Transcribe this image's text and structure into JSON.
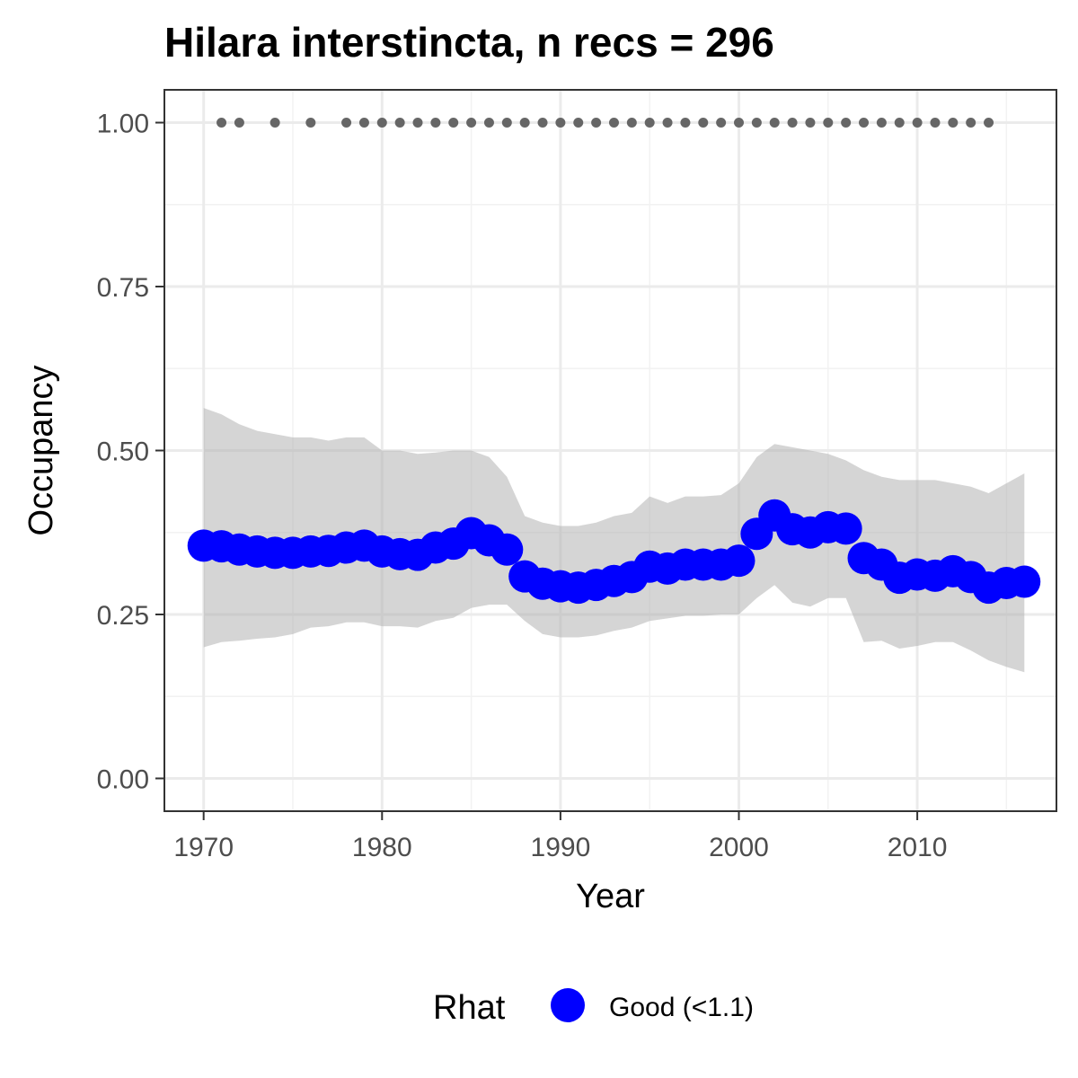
{
  "chart_data": {
    "type": "line",
    "title": "Hilara interstincta, n recs = 296",
    "xlabel": "Year",
    "ylabel": "Occupancy",
    "xlim": [
      1967.8,
      2017.8
    ],
    "ylim": [
      -0.05,
      1.05
    ],
    "x_ticks": [
      1970,
      1980,
      1990,
      2000,
      2010
    ],
    "x_tick_labels": [
      "1970",
      "1980",
      "1990",
      "2000",
      "2010"
    ],
    "y_ticks": [
      0,
      0.25,
      0.5,
      0.75,
      1
    ],
    "y_tick_labels": [
      "0.00",
      "0.25",
      "0.50",
      "0.75",
      "1.00"
    ],
    "grid": true,
    "legend": {
      "title": "Rhat",
      "position": "bottom",
      "entries": [
        {
          "label": "Good (<1.1)",
          "color": "#0000ff"
        }
      ]
    },
    "series": [
      {
        "name": "Good (<1.1)",
        "color": "#0000ff",
        "x": [
          1970,
          1971,
          1972,
          1973,
          1974,
          1975,
          1976,
          1977,
          1978,
          1979,
          1980,
          1981,
          1982,
          1983,
          1984,
          1985,
          1986,
          1987,
          1988,
          1989,
          1990,
          1991,
          1992,
          1993,
          1994,
          1995,
          1996,
          1997,
          1998,
          1999,
          2000,
          2001,
          2002,
          2003,
          2004,
          2005,
          2006,
          2007,
          2008,
          2009,
          2010,
          2011,
          2012,
          2013,
          2014,
          2015,
          2016
        ],
        "y": [
          0.355,
          0.354,
          0.349,
          0.346,
          0.344,
          0.344,
          0.346,
          0.347,
          0.352,
          0.355,
          0.346,
          0.342,
          0.341,
          0.352,
          0.358,
          0.374,
          0.363,
          0.349,
          0.308,
          0.297,
          0.293,
          0.291,
          0.295,
          0.301,
          0.307,
          0.323,
          0.32,
          0.326,
          0.326,
          0.326,
          0.332,
          0.373,
          0.401,
          0.38,
          0.375,
          0.383,
          0.381,
          0.336,
          0.326,
          0.306,
          0.311,
          0.309,
          0.316,
          0.307,
          0.291,
          0.298,
          0.3
        ],
        "lower": [
          0.2,
          0.208,
          0.21,
          0.213,
          0.215,
          0.22,
          0.23,
          0.232,
          0.238,
          0.238,
          0.232,
          0.232,
          0.23,
          0.24,
          0.245,
          0.26,
          0.265,
          0.265,
          0.24,
          0.22,
          0.215,
          0.215,
          0.218,
          0.225,
          0.23,
          0.24,
          0.244,
          0.248,
          0.248,
          0.25,
          0.25,
          0.275,
          0.295,
          0.268,
          0.262,
          0.275,
          0.275,
          0.208,
          0.21,
          0.198,
          0.202,
          0.208,
          0.208,
          0.195,
          0.18,
          0.17,
          0.162
        ],
        "upper": [
          0.565,
          0.555,
          0.54,
          0.53,
          0.525,
          0.52,
          0.52,
          0.515,
          0.52,
          0.52,
          0.5,
          0.5,
          0.495,
          0.497,
          0.5,
          0.5,
          0.49,
          0.46,
          0.4,
          0.39,
          0.385,
          0.385,
          0.39,
          0.4,
          0.405,
          0.43,
          0.42,
          0.43,
          0.43,
          0.432,
          0.45,
          0.49,
          0.51,
          0.505,
          0.5,
          0.495,
          0.485,
          0.47,
          0.46,
          0.455,
          0.455,
          0.455,
          0.45,
          0.445,
          0.435,
          0.45,
          0.465
        ]
      },
      {
        "name": "",
        "color": "#666666",
        "x": [
          1971,
          1972,
          1974,
          1976,
          1978,
          1979,
          1980,
          1981,
          1982,
          1983,
          1984,
          1985,
          1986,
          1987,
          1988,
          1989,
          1990,
          1991,
          1992,
          1993,
          1994,
          1995,
          1996,
          1997,
          1998,
          1999,
          2000,
          2001,
          2002,
          2003,
          2004,
          2005,
          2006,
          2007,
          2008,
          2009,
          2010,
          2011,
          2012,
          2013,
          2014
        ],
        "y": [
          1,
          1,
          1,
          1,
          1,
          1,
          1,
          1,
          1,
          1,
          1,
          1,
          1,
          1,
          1,
          1,
          1,
          1,
          1,
          1,
          1,
          1,
          1,
          1,
          1,
          1,
          1,
          1,
          1,
          1,
          1,
          1,
          1,
          1,
          1,
          1,
          1,
          1,
          1,
          1,
          1
        ]
      }
    ]
  }
}
